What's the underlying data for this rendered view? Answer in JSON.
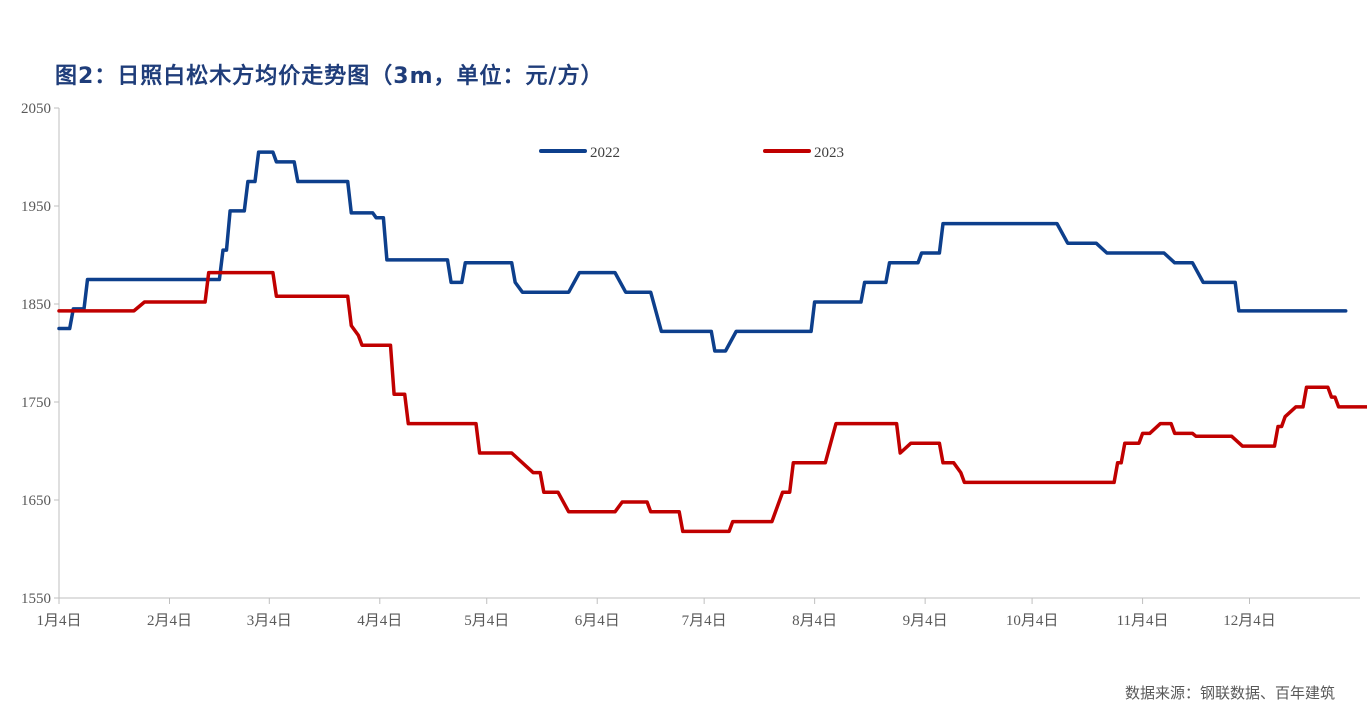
{
  "chart_data": {
    "type": "line",
    "title": "图2：日照白松木方均价走势图（3m，单位：元/方）",
    "source": "数据来源：钢联数据、百年建筑",
    "xlabel": "",
    "ylabel": "",
    "ylim": [
      1550,
      2050
    ],
    "yticks": [
      "1550",
      "1650",
      "1750",
      "1850",
      "1950",
      "2050"
    ],
    "xticks": [
      "1月4日",
      "2月4日",
      "3月4日",
      "4月4日",
      "5月4日",
      "6月4日",
      "7月4日",
      "8月4日",
      "9月4日",
      "10月4日",
      "11月4日",
      "12月4日"
    ],
    "legend_position": "top-center",
    "grid": false,
    "series": [
      {
        "name": "2022",
        "color": "#0d3f8c",
        "points": [
          [
            "01-04",
            1825
          ],
          [
            "01-07",
            1825
          ],
          [
            "01-08",
            1845
          ],
          [
            "01-11",
            1845
          ],
          [
            "01-12",
            1875
          ],
          [
            "02-18",
            1875
          ],
          [
            "02-19",
            1905
          ],
          [
            "02-20",
            1905
          ],
          [
            "02-21",
            1945
          ],
          [
            "02-25",
            1945
          ],
          [
            "02-26",
            1975
          ],
          [
            "02-28",
            1975
          ],
          [
            "03-01",
            2005
          ],
          [
            "03-05",
            2005
          ],
          [
            "03-06",
            1995
          ],
          [
            "03-11",
            1995
          ],
          [
            "03-12",
            1975
          ],
          [
            "03-26",
            1975
          ],
          [
            "03-27",
            1943
          ],
          [
            "04-02",
            1943
          ],
          [
            "04-03",
            1938
          ],
          [
            "04-05",
            1938
          ],
          [
            "04-06",
            1895
          ],
          [
            "04-23",
            1895
          ],
          [
            "04-24",
            1872
          ],
          [
            "04-27",
            1872
          ],
          [
            "04-28",
            1892
          ],
          [
            "05-11",
            1892
          ],
          [
            "05-12",
            1872
          ],
          [
            "05-14",
            1862
          ],
          [
            "05-27",
            1862
          ],
          [
            "05-30",
            1882
          ],
          [
            "06-09",
            1882
          ],
          [
            "06-12",
            1862
          ],
          [
            "06-19",
            1862
          ],
          [
            "06-22",
            1822
          ],
          [
            "07-06",
            1822
          ],
          [
            "07-07",
            1802
          ],
          [
            "07-10",
            1802
          ],
          [
            "07-13",
            1822
          ],
          [
            "08-03",
            1822
          ],
          [
            "08-04",
            1852
          ],
          [
            "08-17",
            1852
          ],
          [
            "08-18",
            1872
          ],
          [
            "08-24",
            1872
          ],
          [
            "08-25",
            1892
          ],
          [
            "09-02",
            1892
          ],
          [
            "09-03",
            1902
          ],
          [
            "09-08",
            1902
          ],
          [
            "09-09",
            1932
          ],
          [
            "10-11",
            1932
          ],
          [
            "10-14",
            1912
          ],
          [
            "10-22",
            1912
          ],
          [
            "10-25",
            1902
          ],
          [
            "11-10",
            1902
          ],
          [
            "11-13",
            1892
          ],
          [
            "11-18",
            1892
          ],
          [
            "11-21",
            1872
          ],
          [
            "11-30",
            1872
          ],
          [
            "12-01",
            1843
          ],
          [
            "12-31",
            1843
          ]
        ]
      },
      {
        "name": "2023",
        "color": "#c00000",
        "points": [
          [
            "01-04",
            1843
          ],
          [
            "01-25",
            1843
          ],
          [
            "01-28",
            1852
          ],
          [
            "02-14",
            1852
          ],
          [
            "02-15",
            1882
          ],
          [
            "03-05",
            1882
          ],
          [
            "03-06",
            1858
          ],
          [
            "03-26",
            1858
          ],
          [
            "03-27",
            1828
          ],
          [
            "03-29",
            1818
          ],
          [
            "03-30",
            1808
          ],
          [
            "04-07",
            1808
          ],
          [
            "04-08",
            1758
          ],
          [
            "04-11",
            1758
          ],
          [
            "04-12",
            1728
          ],
          [
            "05-01",
            1728
          ],
          [
            "05-02",
            1698
          ],
          [
            "05-11",
            1698
          ],
          [
            "05-17",
            1678
          ],
          [
            "05-19",
            1678
          ],
          [
            "05-20",
            1658
          ],
          [
            "05-24",
            1658
          ],
          [
            "05-27",
            1638
          ],
          [
            "06-09",
            1638
          ],
          [
            "06-11",
            1648
          ],
          [
            "06-18",
            1648
          ],
          [
            "06-19",
            1638
          ],
          [
            "06-27",
            1638
          ],
          [
            "06-28",
            1618
          ],
          [
            "07-11",
            1618
          ],
          [
            "07-12",
            1628
          ],
          [
            "07-23",
            1628
          ],
          [
            "07-26",
            1658
          ],
          [
            "07-28",
            1658
          ],
          [
            "07-29",
            1688
          ],
          [
            "08-07",
            1688
          ],
          [
            "08-10",
            1728
          ],
          [
            "08-27",
            1728
          ],
          [
            "08-28",
            1698
          ],
          [
            "08-31",
            1708
          ],
          [
            "09-08",
            1708
          ],
          [
            "09-09",
            1688
          ],
          [
            "09-12",
            1688
          ],
          [
            "09-14",
            1678
          ],
          [
            "09-15",
            1668
          ],
          [
            "10-27",
            1668
          ],
          [
            "10-28",
            1688
          ],
          [
            "10-29",
            1688
          ],
          [
            "10-30",
            1708
          ],
          [
            "11-03",
            1708
          ],
          [
            "11-04",
            1718
          ],
          [
            "11-06",
            1718
          ],
          [
            "11-09",
            1728
          ],
          [
            "11-12",
            1728
          ],
          [
            "11-13",
            1718
          ],
          [
            "11-18",
            1718
          ],
          [
            "11-19",
            1715
          ],
          [
            "11-29",
            1715
          ],
          [
            "12-02",
            1705
          ],
          [
            "12-11",
            1705
          ],
          [
            "12-12",
            1725
          ],
          [
            "12-13",
            1725
          ],
          [
            "12-14",
            1735
          ],
          [
            "12-17",
            1745
          ],
          [
            "12-19",
            1745
          ],
          [
            "12-20",
            1765
          ],
          [
            "12-26",
            1765
          ],
          [
            "12-27",
            1755
          ],
          [
            "12-28",
            1755
          ],
          [
            "12-29",
            1745
          ],
          [
            "01-09",
            1745
          ]
        ]
      }
    ]
  }
}
